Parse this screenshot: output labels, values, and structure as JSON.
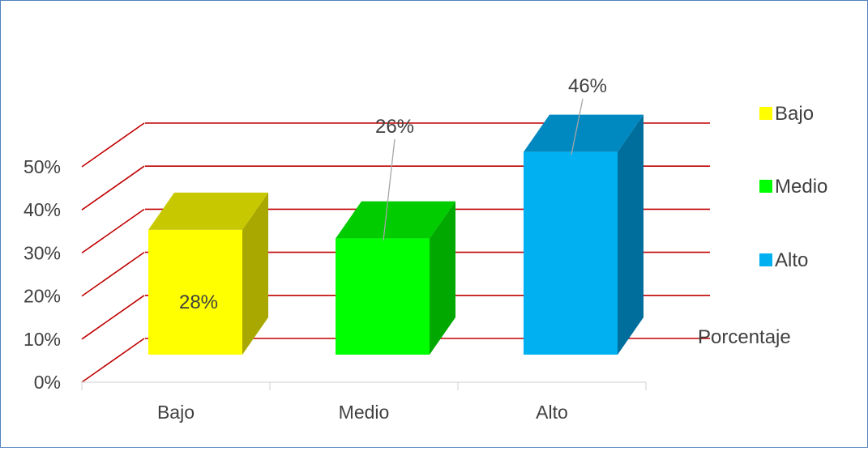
{
  "chart_data": {
    "type": "bar",
    "categories": [
      "Bajo",
      "Medio",
      "Alto"
    ],
    "series": [
      {
        "name": "Porcentaje",
        "values": [
          28,
          26,
          46
        ]
      }
    ],
    "data_labels": [
      "28%",
      "26%",
      "46%"
    ],
    "y_ticks": [
      "0%",
      "10%",
      "20%",
      "30%",
      "40%",
      "50%"
    ],
    "ylim": [
      0,
      50
    ],
    "legend": {
      "position": "right",
      "items": [
        {
          "label": "Bajo",
          "color": "#ffff00"
        },
        {
          "label": "Medio",
          "color": "#00ff00"
        },
        {
          "label": "Alto",
          "color": "#00b0f0"
        }
      ]
    },
    "series_label": "Porcentaje",
    "grid": true,
    "gridline_color": "#c00000",
    "style": "3d-column"
  }
}
